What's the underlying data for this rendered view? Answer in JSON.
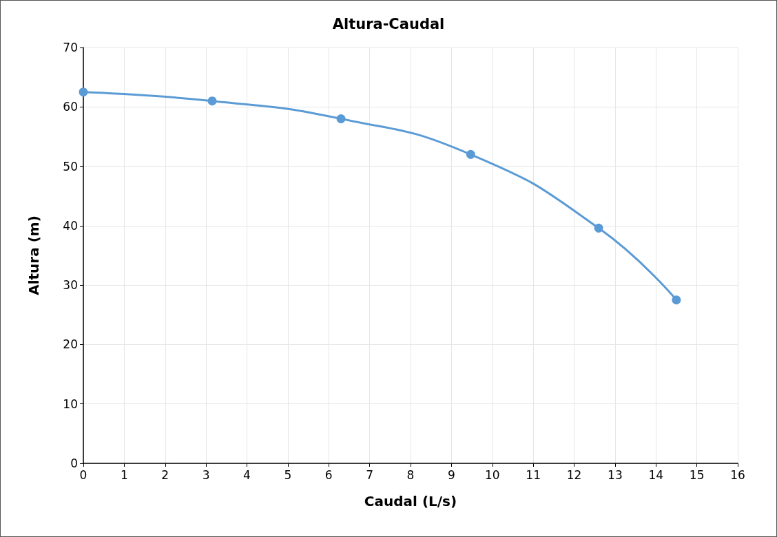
{
  "chart_data": {
    "type": "line",
    "title": "Altura-Caudal",
    "xlabel": "Caudal (L/s)",
    "ylabel": "Altura (m)",
    "x": [
      0,
      3.15,
      6.3,
      9.47,
      12.6,
      14.5
    ],
    "series": [
      {
        "color": "#5b9bd5",
        "values": [
          62.5,
          61,
          58,
          52,
          39.6,
          27.5
        ]
      }
    ],
    "xlim": [
      0,
      16
    ],
    "xticks": [
      0,
      1,
      2,
      3,
      4,
      5,
      6,
      7,
      8,
      9,
      10,
      11,
      12,
      13,
      14,
      15,
      16
    ],
    "ylim": [
      0,
      70
    ],
    "yticks": [
      0,
      10,
      20,
      30,
      40,
      50,
      60,
      70
    ],
    "grid": true,
    "marker": "circle",
    "line_style": "solid"
  }
}
